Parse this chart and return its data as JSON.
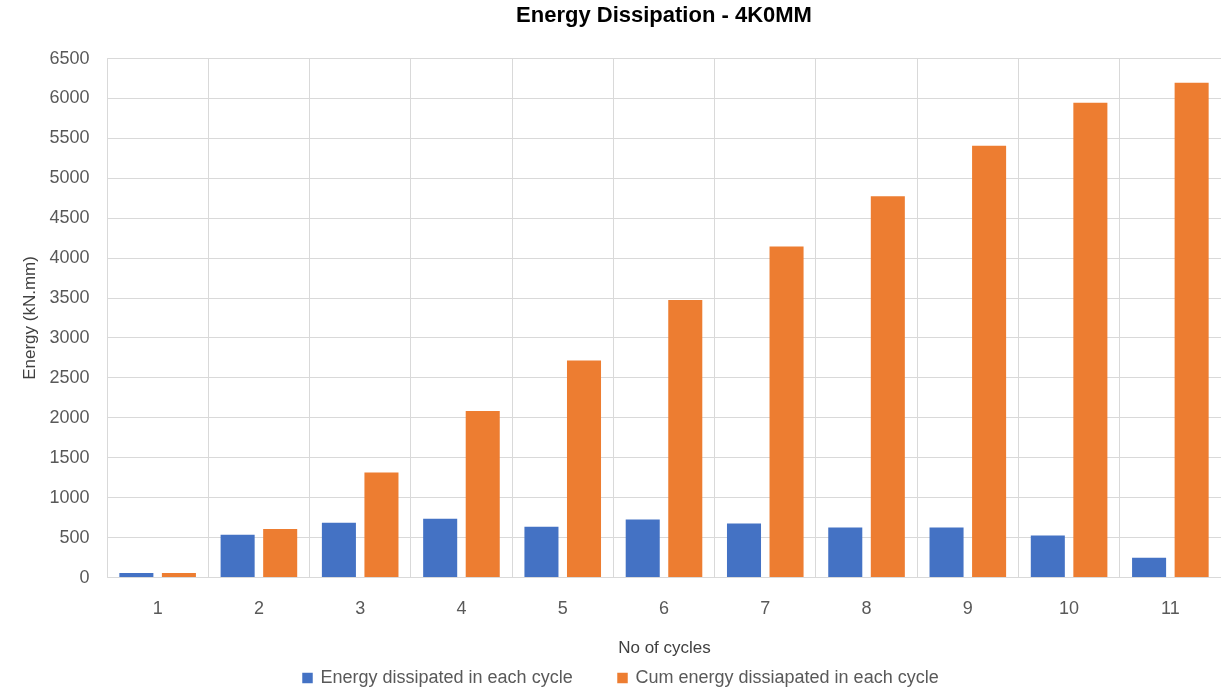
{
  "chart_data": {
    "type": "bar",
    "title": "Energy Dissipation - 4K0MM",
    "xlabel": "No of cycles",
    "ylabel": "Energy (kN.mm)",
    "categories": [
      "1",
      "2",
      "3",
      "4",
      "5",
      "6",
      "7",
      "8",
      "9",
      "10",
      "11"
    ],
    "series": [
      {
        "name": "Energy dissipated in each cycle",
        "color": "#4472c4",
        "values": [
          50,
          530,
          680,
          730,
          630,
          720,
          670,
          620,
          620,
          520,
          240
        ]
      },
      {
        "name": "Cum energy dissiapated in each cycle",
        "color": "#ed7d31",
        "values": [
          50,
          600,
          1310,
          2080,
          2710,
          3470,
          4140,
          4770,
          5400,
          5940,
          6190
        ]
      }
    ],
    "ylim": [
      0,
      6500
    ],
    "yticks": [
      0,
      500,
      1000,
      1500,
      2000,
      2500,
      3000,
      3500,
      4000,
      4500,
      5000,
      5500,
      6000,
      6500
    ],
    "grid": true,
    "legend": "bottom"
  }
}
